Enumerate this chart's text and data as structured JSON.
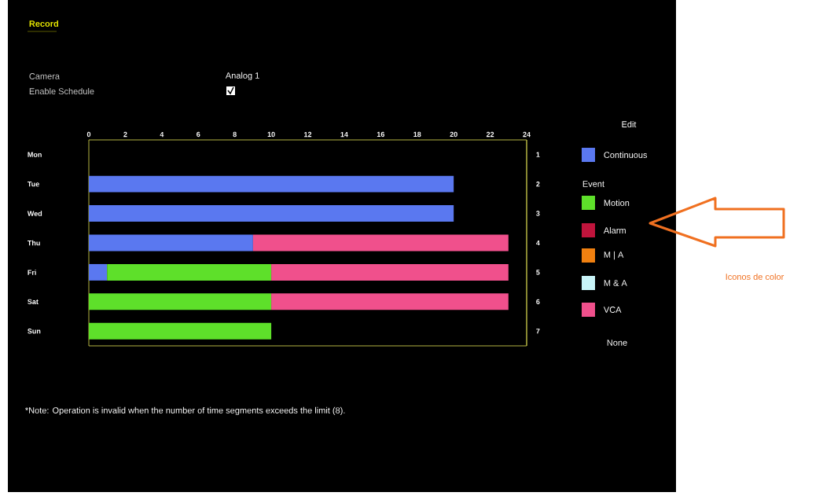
{
  "chart_data": {
    "type": "bar",
    "orientation": "horizontal",
    "title": "Record",
    "categories": [
      "Mon",
      "Tue",
      "Wed",
      "Thu",
      "Fri",
      "Sat",
      "Sun"
    ],
    "series": [
      {
        "name": "Continuous",
        "color": "#5a78f0",
        "values": [
          null,
          20,
          20,
          9,
          1,
          null,
          null
        ],
        "base": [
          null,
          0,
          0,
          0,
          0,
          null,
          null
        ]
      },
      {
        "name": "Motion",
        "color": "#5ee02a",
        "values": [
          null,
          null,
          null,
          null,
          9,
          10,
          10
        ],
        "base": [
          null,
          null,
          null,
          null,
          1,
          0,
          0
        ]
      },
      {
        "name": "Alarm",
        "color": "#c0143c",
        "values": [
          null,
          null,
          null,
          null,
          null,
          null,
          null
        ],
        "base": [
          null,
          null,
          null,
          null,
          null,
          null,
          null
        ]
      },
      {
        "name": "M | A",
        "color": "#f08010",
        "values": [
          null,
          null,
          null,
          null,
          null,
          null,
          null
        ],
        "base": [
          null,
          null,
          null,
          null,
          null,
          null,
          null
        ]
      },
      {
        "name": "M & A",
        "color": "#c8f4f8",
        "values": [
          null,
          null,
          null,
          null,
          null,
          null,
          null
        ],
        "base": [
          null,
          null,
          null,
          null,
          null,
          null,
          null
        ]
      },
      {
        "name": "VCA",
        "color": "#f0508c",
        "values": [
          null,
          null,
          null,
          14,
          13,
          13,
          null
        ],
        "base": [
          null,
          null,
          null,
          9,
          10,
          10,
          null
        ]
      }
    ],
    "xlim": [
      0,
      24
    ],
    "xticks": [
      0,
      2,
      4,
      6,
      8,
      10,
      12,
      14,
      16,
      18,
      20,
      22,
      24
    ],
    "y2lim": [
      7.5,
      0.5
    ],
    "y2ticks": [
      1,
      2,
      3,
      4,
      5,
      6,
      7
    ],
    "legend": "right",
    "annotations": [
      "Camera",
      "Analog 1",
      "Enable Schedule",
      "Edit",
      "Event",
      "None",
      "*Note: Operation is invalid when the number of time segments exceeds the limit (8).",
      "Iconos de color"
    ]
  }
}
